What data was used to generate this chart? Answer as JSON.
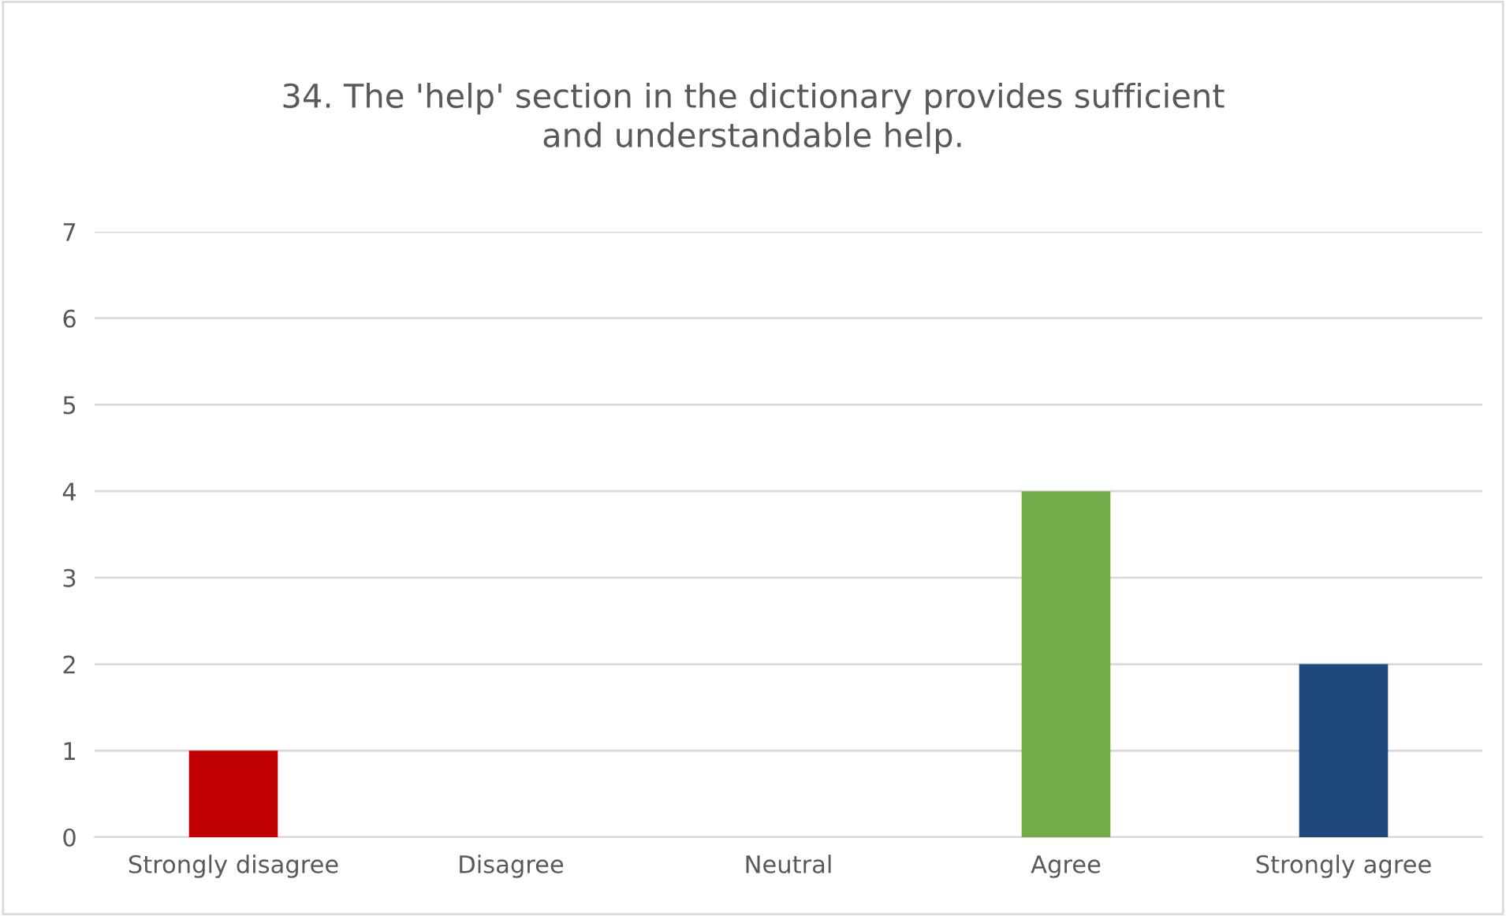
{
  "chart_data": {
    "type": "bar",
    "title": "34. The 'help' section in the dictionary provides sufficient\nand understandable help.",
    "categories": [
      "Strongly disagree",
      "Disagree",
      "Neutral",
      "Agree",
      "Strongly agree"
    ],
    "values": [
      1,
      0,
      0,
      4,
      2
    ],
    "colors": [
      "#c00000",
      "#ed7d31",
      "#a5a5a5",
      "#70ad47",
      "#1f497d"
    ],
    "ylim": [
      0,
      7
    ],
    "yticks": [
      0,
      1,
      2,
      3,
      4,
      5,
      6,
      7
    ],
    "grid": "y",
    "legend": false
  }
}
